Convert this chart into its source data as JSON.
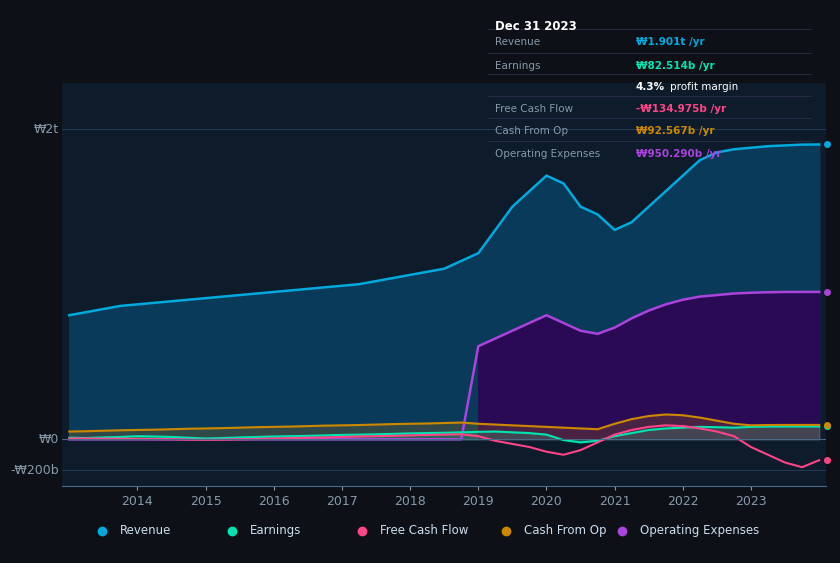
{
  "bg_color": "#0d1117",
  "plot_bg_color": "#0d1b2a",
  "text_color": "#8899aa",
  "ytick_labels": [
    "₩2t",
    "₩0",
    "-₩200b"
  ],
  "years": [
    2013.0,
    2013.25,
    2013.5,
    2013.75,
    2014.0,
    2014.25,
    2014.5,
    2014.75,
    2015.0,
    2015.25,
    2015.5,
    2015.75,
    2016.0,
    2016.25,
    2016.5,
    2016.75,
    2017.0,
    2017.25,
    2017.5,
    2017.75,
    2018.0,
    2018.25,
    2018.5,
    2018.75,
    2019.0,
    2019.25,
    2019.5,
    2019.75,
    2020.0,
    2020.25,
    2020.5,
    2020.75,
    2021.0,
    2021.25,
    2021.5,
    2021.75,
    2022.0,
    2022.25,
    2022.5,
    2022.75,
    2023.0,
    2023.25,
    2023.5,
    2023.75,
    2024.0
  ],
  "revenue": [
    800000000000.0,
    820000000000.0,
    840000000000.0,
    860000000000.0,
    870000000000.0,
    880000000000.0,
    890000000000.0,
    900000000000.0,
    910000000000.0,
    920000000000.0,
    930000000000.0,
    940000000000.0,
    950000000000.0,
    960000000000.0,
    970000000000.0,
    980000000000.0,
    990000000000.0,
    1000000000000.0,
    1020000000000.0,
    1040000000000.0,
    1060000000000.0,
    1080000000000.0,
    1100000000000.0,
    1150000000000.0,
    1200000000000.0,
    1350000000000.0,
    1500000000000.0,
    1600000000000.0,
    1700000000000.0,
    1650000000000.0,
    1500000000000.0,
    1450000000000.0,
    1350000000000.0,
    1400000000000.0,
    1500000000000.0,
    1600000000000.0,
    1700000000000.0,
    1800000000000.0,
    1850000000000.0,
    1870000000000.0,
    1880000000000.0,
    1890000000000.0,
    1895000000000.0,
    1900000000000.0,
    1901000000000.0
  ],
  "earnings": [
    10000000000.0,
    8000000000.0,
    12000000000.0,
    15000000000.0,
    20000000000.0,
    18000000000.0,
    15000000000.0,
    10000000000.0,
    5000000000.0,
    8000000000.0,
    12000000000.0,
    15000000000.0,
    18000000000.0,
    20000000000.0,
    22000000000.0,
    25000000000.0,
    28000000000.0,
    30000000000.0,
    32000000000.0,
    35000000000.0,
    38000000000.0,
    40000000000.0,
    42000000000.0,
    45000000000.0,
    48000000000.0,
    50000000000.0,
    45000000000.0,
    40000000000.0,
    30000000000.0,
    -5000000000.0,
    -20000000000.0,
    -10000000000.0,
    20000000000.0,
    40000000000.0,
    60000000000.0,
    70000000000.0,
    75000000000.0,
    80000000000.0,
    78000000000.0,
    75000000000.0,
    80000000000.0,
    82000000000.0,
    82500000000.0,
    82500000000.0,
    82514000000.0
  ],
  "free_cash_flow": [
    5000000000.0,
    5000000000.0,
    4000000000.0,
    3000000000.0,
    2000000000.0,
    1000000000.0,
    0,
    -2000000000.0,
    -3000000000.0,
    -2000000000.0,
    0,
    2000000000.0,
    5000000000.0,
    8000000000.0,
    10000000000.0,
    12000000000.0,
    15000000000.0,
    18000000000.0,
    20000000000.0,
    22000000000.0,
    25000000000.0,
    28000000000.0,
    30000000000.0,
    32000000000.0,
    20000000000.0,
    -10000000000.0,
    -30000000000.0,
    -50000000000.0,
    -80000000000.0,
    -100000000000.0,
    -70000000000.0,
    -20000000000.0,
    30000000000.0,
    60000000000.0,
    80000000000.0,
    90000000000.0,
    85000000000.0,
    70000000000.0,
    50000000000.0,
    20000000000.0,
    -50000000000.0,
    -100000000000.0,
    -150000000000.0,
    -180000000000.0,
    -134975000000.0
  ],
  "cash_from_op": [
    50000000000.0,
    52000000000.0,
    55000000000.0,
    58000000000.0,
    60000000000.0,
    62000000000.0,
    65000000000.0,
    68000000000.0,
    70000000000.0,
    72000000000.0,
    75000000000.0,
    78000000000.0,
    80000000000.0,
    82000000000.0,
    85000000000.0,
    88000000000.0,
    90000000000.0,
    92000000000.0,
    95000000000.0,
    98000000000.0,
    100000000000.0,
    102000000000.0,
    105000000000.0,
    108000000000.0,
    100000000000.0,
    95000000000.0,
    90000000000.0,
    85000000000.0,
    80000000000.0,
    75000000000.0,
    70000000000.0,
    65000000000.0,
    100000000000.0,
    130000000000.0,
    150000000000.0,
    160000000000.0,
    155000000000.0,
    140000000000.0,
    120000000000.0,
    100000000000.0,
    90000000000.0,
    92000000000.0,
    92500000000.0,
    92500000000.0,
    92567000000.0
  ],
  "op_expenses": [
    0,
    0,
    0,
    0,
    0,
    0,
    0,
    0,
    0,
    0,
    0,
    0,
    0,
    0,
    0,
    0,
    0,
    0,
    0,
    0,
    0,
    0,
    0,
    0,
    600000000000.0,
    650000000000.0,
    700000000000.0,
    750000000000.0,
    800000000000.0,
    750000000000.0,
    700000000000.0,
    680000000000.0,
    720000000000.0,
    780000000000.0,
    830000000000.0,
    870000000000.0,
    900000000000.0,
    920000000000.0,
    930000000000.0,
    940000000000.0,
    945000000000.0,
    948000000000.0,
    950000000000.0,
    950000000000.0,
    950290000000.0
  ],
  "revenue_color": "#00aadd",
  "revenue_fill": "#0a3a5a",
  "earnings_color": "#00e5b0",
  "fcf_color": "#ff4488",
  "cashop_color": "#cc8800",
  "opex_color": "#aa44dd",
  "opex_fill": "#2a0a55",
  "info_box": {
    "date": "Dec 31 2023",
    "labels": [
      "Revenue",
      "Earnings",
      "",
      "Free Cash Flow",
      "Cash From Op",
      "Operating Expenses"
    ],
    "values": [
      "₩1.901t /yr",
      "₩82.514b /yr",
      "4.3% profit margin",
      "-₩134.975b /yr",
      "₩92.567b /yr",
      "₩950.290b /yr"
    ],
    "val_colors": [
      "#00aadd",
      "#00e5b0",
      "#ffffff",
      "#ff4488",
      "#cc8800",
      "#aa44dd"
    ]
  },
  "legend_items": [
    {
      "label": "Revenue",
      "color": "#00aadd"
    },
    {
      "label": "Earnings",
      "color": "#00e5b0"
    },
    {
      "label": "Free Cash Flow",
      "color": "#ff4488"
    },
    {
      "label": "Cash From Op",
      "color": "#cc8800"
    },
    {
      "label": "Operating Expenses",
      "color": "#aa44dd"
    }
  ],
  "xticks": [
    2014,
    2015,
    2016,
    2017,
    2018,
    2019,
    2020,
    2021,
    2022,
    2023
  ]
}
